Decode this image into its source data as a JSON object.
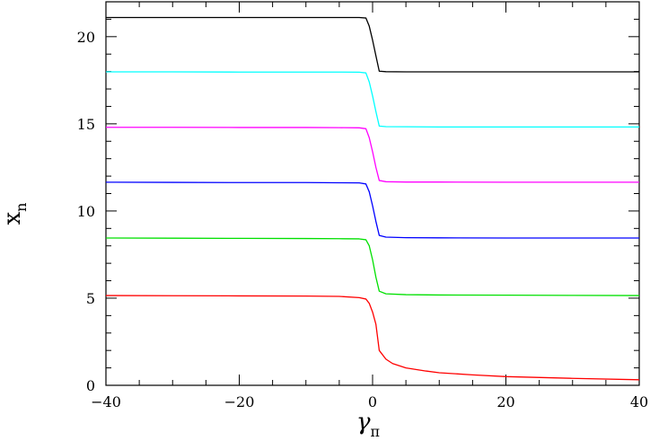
{
  "chart_data": {
    "type": "line",
    "title": "",
    "xlabel": {
      "main": "γ",
      "sub": "π"
    },
    "ylabel": {
      "main": "x",
      "sub": "n"
    },
    "xlim": [
      -40,
      40
    ],
    "ylim": [
      0,
      22
    ],
    "xticks_major": [
      -40,
      -20,
      0,
      20,
      40
    ],
    "xtick_labels": [
      "−40",
      "−20",
      "0",
      "20",
      "40"
    ],
    "yticks_major": [
      0,
      5,
      10,
      15,
      20
    ],
    "ytick_labels": [
      "0",
      "5",
      "10",
      "15",
      "20"
    ],
    "grid": false,
    "series": [
      {
        "color": "#ff0000",
        "points": [
          [
            -40,
            5.15
          ],
          [
            -30,
            5.14
          ],
          [
            -20,
            5.13
          ],
          [
            -10,
            5.12
          ],
          [
            -5,
            5.1
          ],
          [
            -2,
            5.03
          ],
          [
            -1,
            4.95
          ],
          [
            -0.5,
            4.7
          ],
          [
            0,
            4.2
          ],
          [
            0.5,
            3.5
          ],
          [
            1,
            2.0
          ],
          [
            2,
            1.5
          ],
          [
            3,
            1.25
          ],
          [
            5,
            1.0
          ],
          [
            8,
            0.82
          ],
          [
            10,
            0.72
          ],
          [
            15,
            0.6
          ],
          [
            20,
            0.5
          ],
          [
            30,
            0.4
          ],
          [
            40,
            0.32
          ]
        ]
      },
      {
        "color": "#00e000",
        "points": [
          [
            -40,
            8.45
          ],
          [
            -30,
            8.44
          ],
          [
            -20,
            8.43
          ],
          [
            -10,
            8.42
          ],
          [
            -5,
            8.41
          ],
          [
            -2,
            8.4
          ],
          [
            -1,
            8.35
          ],
          [
            -0.5,
            8.0
          ],
          [
            0,
            7.2
          ],
          [
            0.5,
            6.2
          ],
          [
            1,
            5.4
          ],
          [
            2,
            5.25
          ],
          [
            5,
            5.2
          ],
          [
            10,
            5.18
          ],
          [
            20,
            5.17
          ],
          [
            30,
            5.16
          ],
          [
            40,
            5.15
          ]
        ]
      },
      {
        "color": "#0000ff",
        "points": [
          [
            -40,
            11.65
          ],
          [
            -30,
            11.64
          ],
          [
            -20,
            11.63
          ],
          [
            -10,
            11.63
          ],
          [
            -5,
            11.62
          ],
          [
            -2,
            11.61
          ],
          [
            -1,
            11.55
          ],
          [
            -0.5,
            11.1
          ],
          [
            0,
            10.3
          ],
          [
            0.5,
            9.4
          ],
          [
            1,
            8.6
          ],
          [
            2,
            8.5
          ],
          [
            5,
            8.47
          ],
          [
            10,
            8.46
          ],
          [
            20,
            8.45
          ],
          [
            30,
            8.45
          ],
          [
            40,
            8.45
          ]
        ]
      },
      {
        "color": "#ff00ff",
        "points": [
          [
            -40,
            14.8
          ],
          [
            -30,
            14.8
          ],
          [
            -20,
            14.79
          ],
          [
            -10,
            14.79
          ],
          [
            -5,
            14.78
          ],
          [
            -2,
            14.77
          ],
          [
            -1,
            14.72
          ],
          [
            -0.5,
            14.2
          ],
          [
            0,
            13.4
          ],
          [
            0.5,
            12.5
          ],
          [
            1,
            11.75
          ],
          [
            2,
            11.68
          ],
          [
            5,
            11.66
          ],
          [
            10,
            11.66
          ],
          [
            20,
            11.65
          ],
          [
            30,
            11.65
          ],
          [
            40,
            11.65
          ]
        ]
      },
      {
        "color": "#00ffff",
        "points": [
          [
            -40,
            17.98
          ],
          [
            -30,
            17.98
          ],
          [
            -20,
            17.97
          ],
          [
            -10,
            17.97
          ],
          [
            -5,
            17.97
          ],
          [
            -2,
            17.96
          ],
          [
            -1,
            17.92
          ],
          [
            -0.5,
            17.4
          ],
          [
            0,
            16.6
          ],
          [
            0.5,
            15.7
          ],
          [
            1,
            14.87
          ],
          [
            2,
            14.84
          ],
          [
            5,
            14.83
          ],
          [
            10,
            14.82
          ],
          [
            20,
            14.82
          ],
          [
            30,
            14.82
          ],
          [
            40,
            14.82
          ]
        ]
      },
      {
        "color": "#000000",
        "points": [
          [
            -40,
            21.1
          ],
          [
            -30,
            21.1
          ],
          [
            -20,
            21.1
          ],
          [
            -10,
            21.1
          ],
          [
            -5,
            21.1
          ],
          [
            -2,
            21.1
          ],
          [
            -1,
            21.07
          ],
          [
            -0.5,
            20.6
          ],
          [
            0,
            19.8
          ],
          [
            0.5,
            18.9
          ],
          [
            1,
            18.02
          ],
          [
            2,
            17.99
          ],
          [
            5,
            17.98
          ],
          [
            10,
            17.98
          ],
          [
            20,
            17.98
          ],
          [
            30,
            17.98
          ],
          [
            40,
            17.98
          ]
        ]
      }
    ]
  }
}
